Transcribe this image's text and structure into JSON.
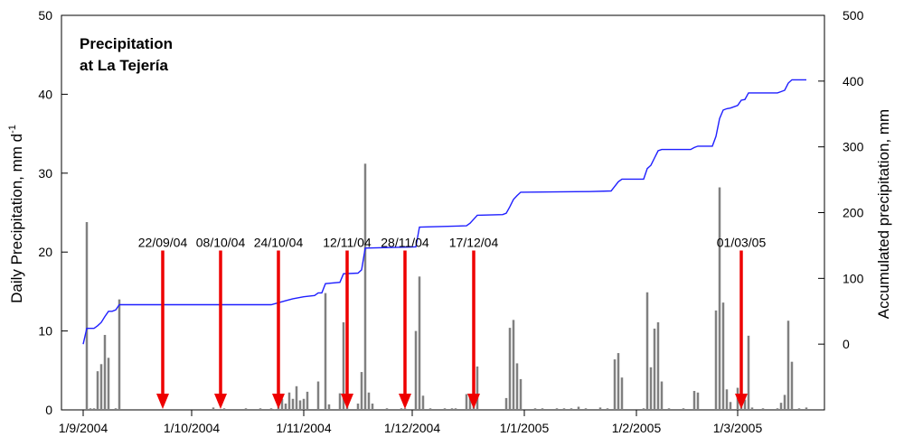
{
  "chart_data": {
    "type": "bar",
    "title_lines": [
      "Precipitation",
      "at La Tejería"
    ],
    "ylabel_left": "Daily Precipitation, mm d",
    "ylabel_left_sup": "-1",
    "ylabel_right": "Accumulated precipitation, mm",
    "ylim_left": [
      0,
      50
    ],
    "ylim_right": [
      -100,
      500
    ],
    "yticks_left": [
      0,
      10,
      20,
      30,
      40,
      50
    ],
    "yticks_right": [
      0,
      100,
      200,
      300,
      400,
      500
    ],
    "x_range_days": [
      -6,
      205
    ],
    "xticks": [
      {
        "day": 0,
        "label": "1/9/2004"
      },
      {
        "day": 30,
        "label": "1/10/2004"
      },
      {
        "day": 61,
        "label": "1/11/2004"
      },
      {
        "day": 91,
        "label": "1/12/2004"
      },
      {
        "day": 122,
        "label": "1/1/2005"
      },
      {
        "day": 153,
        "label": "1/2/2005"
      },
      {
        "day": 181,
        "label": "1/3/2005"
      }
    ],
    "grid": false,
    "legend": "none",
    "series": [
      {
        "kind": "bars",
        "axis": "left",
        "color": "#808080",
        "points": [
          [
            1,
            23.8
          ],
          [
            2,
            0.2
          ],
          [
            3,
            0.2
          ],
          [
            4,
            4.9
          ],
          [
            5,
            5.8
          ],
          [
            6,
            9.5
          ],
          [
            7,
            6.6
          ],
          [
            9,
            0.2
          ],
          [
            10,
            14.0
          ],
          [
            36,
            0.3
          ],
          [
            39,
            0.2
          ],
          [
            45,
            0.2
          ],
          [
            49,
            0.2
          ],
          [
            52,
            0.2
          ],
          [
            53,
            0.1
          ],
          [
            54,
            3.2
          ],
          [
            55,
            1.4
          ],
          [
            56,
            0.8
          ],
          [
            57,
            2.2
          ],
          [
            58,
            1.4
          ],
          [
            59,
            3.0
          ],
          [
            60,
            1.2
          ],
          [
            61,
            1.4
          ],
          [
            62,
            2.3
          ],
          [
            65,
            3.6
          ],
          [
            67,
            14.8
          ],
          [
            68,
            0.7
          ],
          [
            71,
            2.1
          ],
          [
            72,
            11.1
          ],
          [
            73,
            1.3
          ],
          [
            76,
            0.8
          ],
          [
            77,
            4.8
          ],
          [
            78,
            31.2
          ],
          [
            79,
            2.2
          ],
          [
            80,
            0.8
          ],
          [
            84,
            0.2
          ],
          [
            88,
            0.2
          ],
          [
            89,
            0.2
          ],
          [
            92,
            10.0
          ],
          [
            93,
            16.9
          ],
          [
            94,
            1.8
          ],
          [
            96,
            0.2
          ],
          [
            100,
            0.2
          ],
          [
            102,
            0.2
          ],
          [
            103,
            0.2
          ],
          [
            106,
            2.0
          ],
          [
            107,
            1.7
          ],
          [
            108,
            3.8
          ],
          [
            109,
            5.5
          ],
          [
            117,
            1.5
          ],
          [
            118,
            10.4
          ],
          [
            119,
            11.4
          ],
          [
            120,
            5.9
          ],
          [
            121,
            3.9
          ],
          [
            125,
            0.2
          ],
          [
            127,
            0.2
          ],
          [
            131,
            0.2
          ],
          [
            133,
            0.2
          ],
          [
            135,
            0.2
          ],
          [
            137,
            0.4
          ],
          [
            139,
            0.2
          ],
          [
            143,
            0.3
          ],
          [
            145,
            0.2
          ],
          [
            147,
            6.4
          ],
          [
            148,
            7.2
          ],
          [
            149,
            4.1
          ],
          [
            155,
            0.2
          ],
          [
            156,
            14.9
          ],
          [
            157,
            5.4
          ],
          [
            158,
            10.3
          ],
          [
            159,
            11.1
          ],
          [
            160,
            3.6
          ],
          [
            162,
            0.2
          ],
          [
            166,
            0.2
          ],
          [
            169,
            2.4
          ],
          [
            170,
            2.2
          ],
          [
            175,
            12.6
          ],
          [
            176,
            28.2
          ],
          [
            177,
            13.6
          ],
          [
            178,
            2.6
          ],
          [
            179,
            1.0
          ],
          [
            181,
            2.8
          ],
          [
            182,
            8.2
          ],
          [
            183,
            1.3
          ],
          [
            184,
            9.4
          ],
          [
            185,
            0.3
          ],
          [
            188,
            0.2
          ],
          [
            192,
            0.2
          ],
          [
            193,
            0.9
          ],
          [
            194,
            1.9
          ],
          [
            195,
            11.3
          ],
          [
            196,
            6.1
          ],
          [
            198,
            0.2
          ],
          [
            200,
            0.3
          ]
        ]
      },
      {
        "kind": "line",
        "axis": "right",
        "color": "#1f1fff",
        "points": [
          [
            0,
            0
          ],
          [
            1,
            24
          ],
          [
            3,
            24
          ],
          [
            4,
            28
          ],
          [
            5,
            33
          ],
          [
            6,
            42
          ],
          [
            7,
            50
          ],
          [
            8,
            50
          ],
          [
            9,
            52
          ],
          [
            10,
            60
          ],
          [
            52,
            60
          ],
          [
            54,
            63
          ],
          [
            56,
            66
          ],
          [
            58,
            69
          ],
          [
            61,
            72
          ],
          [
            64,
            74
          ],
          [
            65,
            78
          ],
          [
            66,
            78
          ],
          [
            67,
            92
          ],
          [
            71,
            94
          ],
          [
            72,
            107
          ],
          [
            76,
            108
          ],
          [
            77,
            113
          ],
          [
            78,
            146
          ],
          [
            92,
            148
          ],
          [
            93,
            178
          ],
          [
            106,
            180
          ],
          [
            107,
            184
          ],
          [
            108,
            190
          ],
          [
            109,
            196
          ],
          [
            116,
            197
          ],
          [
            117,
            199
          ],
          [
            118,
            209
          ],
          [
            119,
            220
          ],
          [
            120,
            226
          ],
          [
            121,
            231
          ],
          [
            140,
            232
          ],
          [
            146,
            233
          ],
          [
            147,
            240
          ],
          [
            148,
            247
          ],
          [
            149,
            251
          ],
          [
            155,
            251
          ],
          [
            156,
            267
          ],
          [
            157,
            272
          ],
          [
            158,
            283
          ],
          [
            159,
            294
          ],
          [
            160,
            296
          ],
          [
            168,
            296
          ],
          [
            169,
            299
          ],
          [
            170,
            301
          ],
          [
            174,
            301
          ],
          [
            175,
            316
          ],
          [
            176,
            343
          ],
          [
            177,
            356
          ],
          [
            178,
            358
          ],
          [
            179,
            359
          ],
          [
            181,
            363
          ],
          [
            182,
            371
          ],
          [
            183,
            372
          ],
          [
            184,
            382
          ],
          [
            185,
            382
          ],
          [
            192,
            382
          ],
          [
            193,
            384
          ],
          [
            194,
            386
          ],
          [
            195,
            397
          ],
          [
            196,
            402
          ],
          [
            200,
            402
          ]
        ]
      }
    ],
    "annotations": [
      {
        "day": 22,
        "label": "22/09/04",
        "value": 20.2
      },
      {
        "day": 38,
        "label": "08/10/04",
        "value": 20.2
      },
      {
        "day": 54,
        "label": "24/10/04",
        "value": 20.2
      },
      {
        "day": 73,
        "label": "12/11/04",
        "value": 20.2
      },
      {
        "day": 89,
        "label": "28/11/04",
        "value": 20.2
      },
      {
        "day": 108,
        "label": "17/12/04",
        "value": 20.2
      },
      {
        "day": 182,
        "label": "01/03/05",
        "value": 20.2
      }
    ],
    "annotation_color": "#ee0000"
  }
}
